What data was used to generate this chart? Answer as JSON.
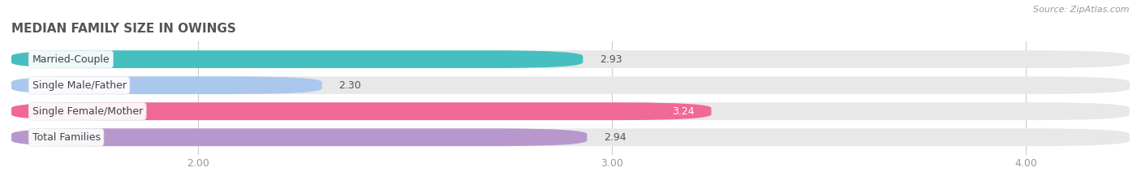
{
  "title": "MEDIAN FAMILY SIZE IN OWINGS",
  "source": "Source: ZipAtlas.com",
  "categories": [
    "Married-Couple",
    "Single Male/Father",
    "Single Female/Mother",
    "Total Families"
  ],
  "values": [
    2.93,
    2.3,
    3.24,
    2.94
  ],
  "bar_colors": [
    "#45bfbf",
    "#aac8ee",
    "#f06898",
    "#b898cc"
  ],
  "xlim_data": [
    1.55,
    4.25
  ],
  "data_min": 1.55,
  "data_max": 4.25,
  "xticks": [
    2.0,
    3.0,
    4.0
  ],
  "xtick_labels": [
    "2.00",
    "3.00",
    "4.00"
  ],
  "background_color": "#ffffff",
  "bar_bg_color": "#e8e8e8",
  "bar_height": 0.68,
  "title_fontsize": 11,
  "label_fontsize": 9,
  "value_fontsize": 9,
  "tick_fontsize": 9,
  "source_fontsize": 8
}
